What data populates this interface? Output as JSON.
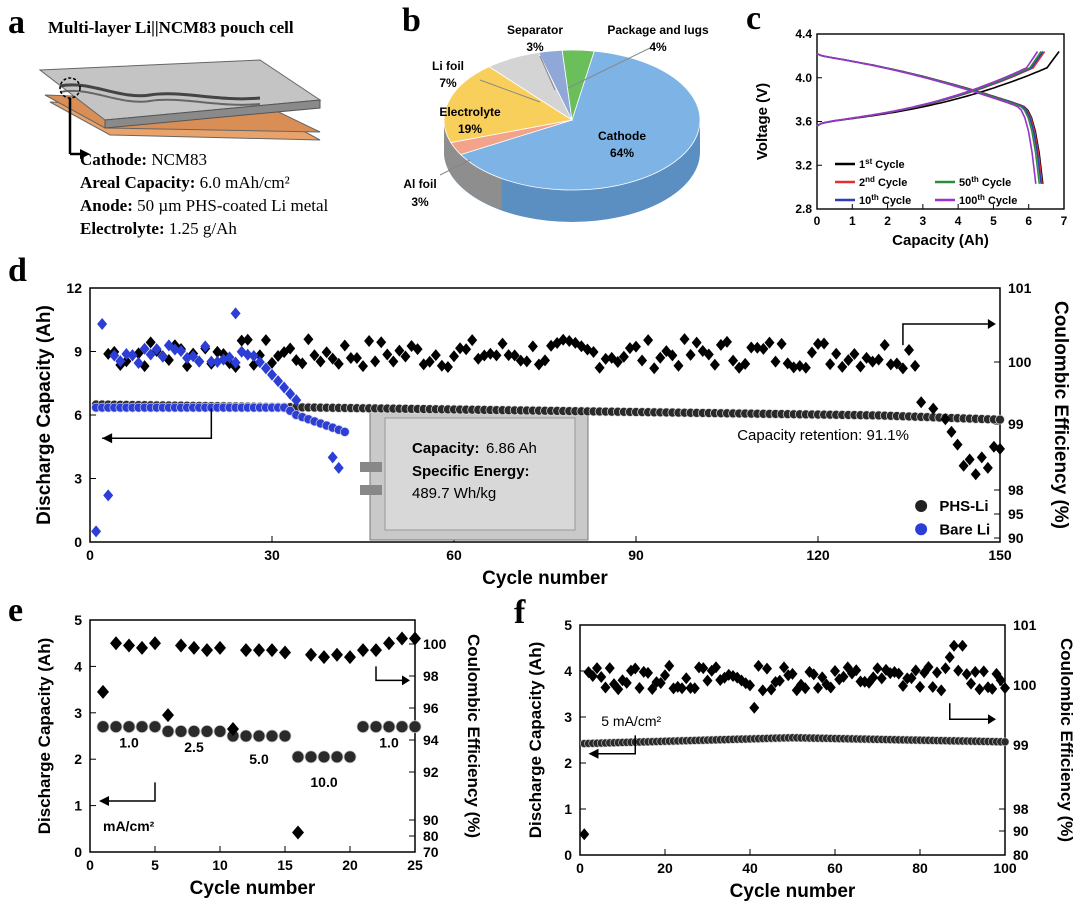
{
  "panel_labels": {
    "a": "a",
    "b": "b",
    "c": "c",
    "d": "d",
    "e": "e",
    "f": "f"
  },
  "panel_a": {
    "title": "Multi-layer Li||NCM83 pouch cell",
    "specs": [
      {
        "key": "Cathode:",
        "value": "NCM83"
      },
      {
        "key": "Areal Capacity:",
        "value": "6.0 mAh/cm²"
      },
      {
        "key": "Anode:",
        "value": "50 µm PHS-coated Li metal"
      },
      {
        "key": "Electrolyte:",
        "value": "1.25 g/Ah"
      }
    ],
    "colors": {
      "top": "#b9b9b9",
      "anode": "#e8a26a",
      "outline": "#666666"
    }
  },
  "chart_data": [
    {
      "id": "b",
      "type": "pie",
      "title": "",
      "slices": [
        {
          "label": "Cathode",
          "value": 64,
          "value_label": "64%",
          "color": "#7eb3e6"
        },
        {
          "label": "Al foil",
          "value": 3,
          "value_label": "3%",
          "color": "#f2a38a"
        },
        {
          "label": "Electrolyte",
          "value": 19,
          "value_label": "19%",
          "color": "#f9cf5c"
        },
        {
          "label": "Li foil",
          "value": 7,
          "value_label": "7%",
          "color": "#d4d4d4"
        },
        {
          "label": "Separator",
          "value": 3,
          "value_label": "3%",
          "color": "#8fa8d8"
        },
        {
          "label": "Package and lugs",
          "value": 4,
          "value_label": "4%",
          "color": "#6abf5b"
        }
      ]
    },
    {
      "id": "c",
      "type": "line",
      "xlabel": "Capacity (Ah)",
      "ylabel": "Voltage (V)",
      "xlim": [
        0,
        7
      ],
      "ylim": [
        2.8,
        4.4
      ],
      "xticks": [
        "0",
        "1",
        "2",
        "3",
        "4",
        "5",
        "6",
        "7"
      ],
      "yticks": [
        "2.8",
        "3.2",
        "3.6",
        "4.0",
        "4.4"
      ],
      "series": [
        {
          "name": "1st Cycle",
          "label_main": "1",
          "label_sup": "st",
          "label_rest": " Cycle",
          "color": "#000000",
          "charge_end": 6.86,
          "discharge_end": 6.4
        },
        {
          "name": "2nd Cycle",
          "label_main": "2",
          "label_sup": "nd",
          "label_rest": " Cycle",
          "color": "#e03030",
          "charge_end": 6.45,
          "discharge_end": 6.38
        },
        {
          "name": "10th Cycle",
          "label_main": "10",
          "label_sup": "th",
          "label_rest": " Cycle",
          "color": "#2b3fb8",
          "charge_end": 6.4,
          "discharge_end": 6.35
        },
        {
          "name": "50th Cycle",
          "label_main": "50",
          "label_sup": "th",
          "label_rest": " Cycle",
          "color": "#2f8a3a",
          "charge_end": 6.35,
          "discharge_end": 6.3
        },
        {
          "name": "100th Cycle",
          "label_main": "100",
          "label_sup": "th",
          "label_rest": " Cycle",
          "color": "#9a33cc",
          "charge_end": 6.25,
          "discharge_end": 6.2
        }
      ]
    },
    {
      "id": "d",
      "type": "scatter",
      "xlabel": "Cycle number",
      "ylabel_left": "Discharge Capacity (Ah)",
      "ylabel_right": "Coulombic Efficiency (%)",
      "xlim": [
        0,
        150
      ],
      "ylim": [
        0,
        12
      ],
      "xticks": [
        "0",
        "30",
        "60",
        "90",
        "120",
        "150"
      ],
      "yticks": [
        "0",
        "3",
        "6",
        "9",
        "12"
      ],
      "right_ticks": [
        "90",
        "95",
        "98",
        "99",
        "100",
        "101"
      ],
      "legend": [
        "PHS-Li",
        "Bare Li"
      ],
      "annotation": "Capacity retention: 91.1%",
      "inset": {
        "capacity_key": "Capacity:",
        "capacity_value": "6.86 Ah",
        "energy_key": "Specific Energy:",
        "energy_value": "489.7 Wh/kg"
      },
      "phs_capacity": {
        "start": 6.5,
        "end": 5.9,
        "n": 150
      },
      "bare_capacity_tail": [
        6.2,
        6.0,
        5.9,
        5.8,
        5.7,
        5.6,
        5.5,
        5.4,
        5.3,
        5.2
      ],
      "bare_ce_highlights": [
        [
          1,
          0.5
        ],
        [
          2,
          10.3
        ],
        [
          3,
          2.2
        ],
        [
          24,
          10.8
        ],
        [
          40,
          4.0
        ],
        [
          41,
          3.5
        ]
      ],
      "phs_ce_tail": [
        [
          137,
          6.6
        ],
        [
          139,
          6.3
        ],
        [
          141,
          5.8
        ],
        [
          142,
          5.2
        ],
        [
          143,
          4.6
        ],
        [
          144,
          3.6
        ],
        [
          145,
          3.9
        ],
        [
          146,
          3.2
        ],
        [
          147,
          4.0
        ],
        [
          148,
          3.5
        ],
        [
          149,
          4.5
        ],
        [
          150,
          4.4
        ]
      ]
    },
    {
      "id": "e",
      "type": "scatter",
      "xlabel": "Cycle number",
      "ylabel_left": "Discharge Capacity (Ah)",
      "ylabel_right": "Coulombic Efficiency (%)",
      "xlim": [
        0,
        25
      ],
      "ylim": [
        0,
        5
      ],
      "xticks": [
        "0",
        "5",
        "10",
        "15",
        "20",
        "25"
      ],
      "yticks": [
        "0",
        "1",
        "2",
        "3",
        "4",
        "5"
      ],
      "right_ticks": [
        "70",
        "80",
        "90",
        "92",
        "94",
        "96",
        "98",
        "100"
      ],
      "rate_labels": [
        "1.0",
        "2.5",
        "5.0",
        "10.0",
        "1.0"
      ],
      "unit_label": "mA/cm²",
      "capacity": [
        2.7,
        2.7,
        2.7,
        2.7,
        2.7,
        2.6,
        2.6,
        2.6,
        2.6,
        2.6,
        2.5,
        2.5,
        2.5,
        2.5,
        2.5,
        2.05,
        2.05,
        2.05,
        2.05,
        2.05,
        2.7,
        2.7,
        2.7,
        2.7,
        2.7
      ],
      "ce": [
        3.45,
        4.5,
        4.45,
        4.4,
        4.5,
        2.95,
        4.45,
        4.4,
        4.35,
        4.4,
        2.65,
        4.35,
        4.35,
        4.35,
        4.3,
        0.42,
        4.25,
        4.2,
        4.25,
        4.2,
        4.35,
        4.35,
        4.5,
        4.6,
        4.6
      ]
    },
    {
      "id": "f",
      "type": "scatter",
      "xlabel": "Cycle number",
      "ylabel_left": "Discharge Capacity (Ah)",
      "ylabel_right": "Coulombic Efficiency (%)",
      "xlim": [
        0,
        100
      ],
      "ylim": [
        0,
        5
      ],
      "xticks": [
        "0",
        "20",
        "40",
        "60",
        "80",
        "100"
      ],
      "yticks": [
        "0",
        "1",
        "2",
        "3",
        "4",
        "5"
      ],
      "right_ticks": [
        "80",
        "90",
        "98",
        "99",
        "100",
        "101"
      ],
      "unit_label": "5 mA/cm²",
      "capacity": {
        "start": 2.42,
        "mid": 2.55,
        "end": 2.46,
        "n": 100
      },
      "ce_first": [
        1,
        0.45
      ]
    }
  ]
}
